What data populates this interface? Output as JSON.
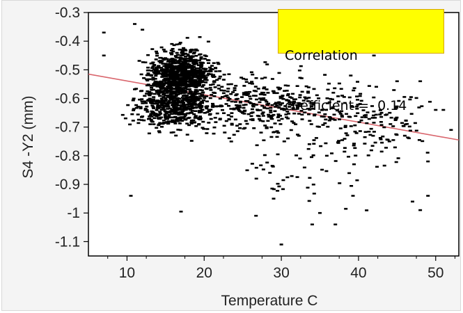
{
  "chart_data": {
    "type": "scatter",
    "title": "",
    "xlabel": "Temperature C",
    "ylabel": "S4 -Y2 (mm)",
    "xlim": [
      5,
      53
    ],
    "ylim": [
      -1.15,
      -0.3
    ],
    "x_ticks": [
      10,
      20,
      30,
      40,
      50
    ],
    "y_ticks": [
      -0.3,
      -0.4,
      -0.5,
      -0.6,
      -0.7,
      -0.8,
      -0.9,
      -1,
      -1.1
    ],
    "y_tick_labels": [
      "-0.3",
      "-0.4",
      "-0.5",
      "-0.6",
      "-0.7",
      "-0.8",
      "-0.9",
      "-1",
      "-1.1"
    ],
    "grid": false,
    "point_color": "#000000",
    "fit_line": {
      "x": [
        5,
        53
      ],
      "y": [
        -0.515,
        -0.745
      ],
      "color": "#d9656c"
    },
    "annotation": {
      "line1": "Correlation",
      "line2": "coefficient =  0.14",
      "background": "#ffff00"
    },
    "clusters": [
      {
        "cx": 17,
        "cy": -0.52,
        "sx": 3.4,
        "sy": 0.07,
        "n": 900
      },
      {
        "cx": 16,
        "cy": -0.63,
        "sx": 4.0,
        "sy": 0.06,
        "n": 500
      },
      {
        "cx": 27,
        "cy": -0.62,
        "sx": 7.0,
        "sy": 0.09,
        "n": 350
      },
      {
        "cx": 40,
        "cy": -0.66,
        "sx": 7.0,
        "sy": 0.1,
        "n": 180
      },
      {
        "cx": 35,
        "cy": -0.86,
        "sx": 8.0,
        "sy": 0.12,
        "n": 60
      }
    ],
    "points": [
      [
        10.5,
        -0.94
      ],
      [
        17,
        -0.995
      ],
      [
        29,
        -0.95
      ],
      [
        30,
        -1.11
      ],
      [
        34,
        -1.04
      ],
      [
        37,
        -1.04
      ],
      [
        35,
        -1.0
      ],
      [
        47,
        -0.96
      ],
      [
        48,
        -0.99
      ],
      [
        49,
        -0.94
      ],
      [
        44,
        -0.75
      ],
      [
        46,
        -0.73
      ],
      [
        50,
        -0.64
      ],
      [
        51,
        -0.64
      ],
      [
        52,
        -0.71
      ],
      [
        49,
        -0.82
      ],
      [
        7,
        -0.37
      ],
      [
        11,
        -0.34
      ],
      [
        12,
        -0.36
      ],
      [
        7,
        -0.45
      ],
      [
        42,
        -0.45
      ],
      [
        39,
        -0.52
      ],
      [
        45,
        -0.54
      ],
      [
        48,
        -0.54
      ]
    ]
  }
}
